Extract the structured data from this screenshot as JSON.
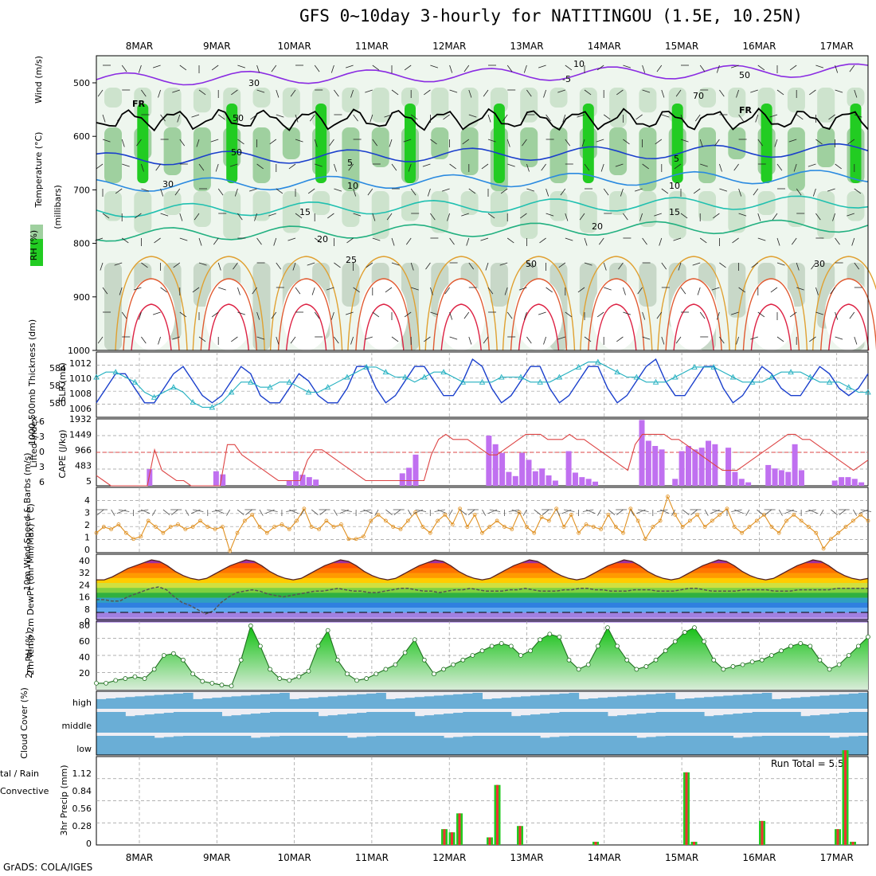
{
  "title": "GFS 0~10day 3-hourly for NATITINGOU (1.5E, 10.25N)",
  "footer": "GrADS: COLA/IGES",
  "dates": [
    "8MAR",
    "9MAR",
    "10MAR",
    "11MAR",
    "12MAR",
    "13MAR",
    "14MAR",
    "15MAR",
    "16MAR",
    "17MAR"
  ],
  "colors": {
    "rh_green": "#22cc22",
    "cape_bar": "#c070f0",
    "lifted": "#dd4444",
    "slp": "#1a3fcc",
    "thickness": "#22b0c0",
    "wind": "#e09020",
    "precip_total": "#22cc22",
    "precip_conv": "#ee3333",
    "cloud": "#6aaed6"
  },
  "panels": {
    "upper_air": {
      "ylabel_rh": "RH (%)",
      "ylabel_temp": "Temperature (°C)",
      "ylabel_wind": "Wind (m/s)",
      "ylabel_units": "(millibars)",
      "y_ticks": [
        "500",
        "600",
        "700",
        "800",
        "900",
        "1000"
      ],
      "freezing_label": "FR",
      "isotherm_labels": [
        "-5",
        "-5",
        "5",
        "5",
        "10",
        "10",
        "15",
        "15",
        "20",
        "20",
        "25"
      ],
      "rh_labels": [
        "10",
        "30",
        "50",
        "50",
        "70",
        "50",
        "30",
        "50",
        "30"
      ]
    },
    "thickness_slp": {
      "ylabel_thick": "1000-500mb Thickness (dm)",
      "ylabel_slp": "SLP (mb)",
      "thick_ticks": [
        "584",
        "582",
        "580"
      ],
      "slp_ticks": [
        "1012",
        "1010",
        "1008",
        "1006"
      ]
    },
    "cape_li": {
      "ylabel_li": "Lifted Index",
      "ylabel_cape": "CAPE (J/kg)",
      "li_ticks": [
        "-6",
        "-3",
        "0",
        "3",
        "6"
      ],
      "cape_ticks": [
        "1932",
        "1449",
        "966",
        "483",
        "5"
      ]
    },
    "wind10m": {
      "ylabel": "10m Wind Speed & Barbs (m/s)",
      "y_ticks": [
        "4",
        "3",
        "2",
        "1",
        "0"
      ]
    },
    "temp2m": {
      "ylabel": "2m Temp 2m DewPt (6hr Min/Max) (°C)",
      "y_ticks": [
        "40",
        "32",
        "24",
        "16",
        "8",
        "0"
      ]
    },
    "rh2m": {
      "ylabel": "2m RH (%)",
      "y_ticks": [
        "80",
        "60",
        "40",
        "20"
      ]
    },
    "cloud": {
      "ylabel": "Cloud Cover (%)",
      "levels": [
        "high",
        "middle",
        "low"
      ]
    },
    "precip": {
      "ylabel": "3hr Precip (mm)",
      "ylabel_left": "tal / Rain Convective",
      "y_ticks": [
        "1.12",
        "0.84",
        "0.56",
        "0.28",
        "0"
      ],
      "run_total": "Run Total = 5.5"
    }
  },
  "chart_data": [
    {
      "type": "line",
      "name_slp": "SLP",
      "slp": [
        1007,
        1009,
        1011,
        1011,
        1009,
        1007,
        1007,
        1009,
        1011,
        1012,
        1010,
        1008,
        1007,
        1008,
        1010,
        1012,
        1011,
        1008,
        1007,
        1007,
        1009,
        1011,
        1010,
        1008,
        1007,
        1007,
        1009,
        1012,
        1012,
        1009,
        1007,
        1008,
        1010,
        1012,
        1012,
        1010,
        1008,
        1008,
        1010,
        1013,
        1012,
        1009,
        1007,
        1008,
        1010,
        1012,
        1012,
        1009,
        1007,
        1008,
        1010,
        1012,
        1012,
        1009,
        1007,
        1008,
        1010,
        1012,
        1013,
        1010,
        1008,
        1008,
        1010,
        1012,
        1012,
        1009,
        1007,
        1008,
        1010,
        1012,
        1011,
        1009,
        1008,
        1008,
        1010,
        1012,
        1011,
        1009,
        1008,
        1009,
        1011
      ],
      "thickness": [
        582.5,
        583,
        583,
        582.5,
        582,
        581,
        580.5,
        581,
        581.5,
        581,
        580,
        579.5,
        579.5,
        580,
        581,
        582,
        582,
        581.5,
        581.5,
        582,
        582,
        581.5,
        581,
        581,
        581.5,
        582,
        582.5,
        583,
        583.5,
        583.5,
        583,
        582.5,
        582.5,
        582,
        582.5,
        583,
        583,
        582.5,
        582,
        582,
        582,
        582,
        582.5,
        582.5,
        582.5,
        582,
        582,
        582,
        582.5,
        583,
        583.5,
        584,
        584,
        583.5,
        583,
        582.5,
        582.5,
        582,
        582,
        582,
        582.5,
        583,
        583.5,
        583.5,
        583.5,
        583,
        582.5,
        582,
        582,
        582,
        582.5,
        583,
        583,
        583,
        582.5,
        582,
        582,
        582,
        581.5,
        581,
        581
      ]
    },
    {
      "type": "bar",
      "cape": [
        5,
        5,
        5,
        5,
        5,
        5,
        5,
        5,
        480,
        5,
        5,
        5,
        5,
        5,
        5,
        5,
        5,
        5,
        420,
        330,
        5,
        5,
        5,
        5,
        5,
        5,
        5,
        5,
        5,
        150,
        420,
        320,
        250,
        180,
        5,
        5,
        5,
        5,
        5,
        5,
        5,
        5,
        5,
        5,
        5,
        5,
        360,
        520,
        900,
        5,
        5,
        5,
        5,
        5,
        5,
        5,
        5,
        5,
        5,
        1449,
        1200,
        950,
        400,
        280,
        950,
        750,
        420,
        500,
        300,
        150,
        5,
        1000,
        380,
        250,
        200,
        120,
        5,
        5,
        5,
        5,
        5,
        5,
        1900,
        1300,
        1150,
        1050,
        5,
        200,
        1000,
        1150,
        1050,
        1100,
        1300,
        1200,
        5,
        1100,
        400,
        200,
        100,
        5,
        5,
        600,
        500,
        450,
        400,
        1200,
        450,
        5,
        5,
        5,
        5,
        150,
        250,
        250,
        200,
        100,
        5
      ],
      "lifted_index": [
        4,
        5,
        6,
        6,
        6,
        6,
        6,
        6,
        -1,
        3,
        4,
        5,
        5,
        6,
        6,
        6,
        6,
        6,
        -2,
        -2,
        0,
        1,
        2,
        3,
        4,
        5,
        5,
        5,
        5,
        1,
        -1,
        -1,
        0,
        1,
        2,
        3,
        4,
        5,
        5,
        5,
        5,
        5,
        5,
        5,
        5,
        5,
        0,
        -3,
        -4,
        -3,
        -3,
        -3,
        -2,
        -1,
        0,
        0,
        -1,
        -2,
        -3,
        -4,
        -4,
        -4,
        -3,
        -3,
        -3,
        -4,
        -3,
        -3,
        -2,
        -1,
        0,
        1,
        2,
        3,
        -2,
        -4,
        -4,
        -4,
        -4,
        -3,
        -3,
        -2,
        -1,
        0,
        1,
        2,
        3,
        3,
        3,
        2,
        1,
        0,
        -1,
        -2,
        -3,
        -4,
        -4,
        -3,
        -3,
        -2,
        -1,
        0,
        1,
        2,
        3,
        2,
        1
      ]
    },
    {
      "type": "line",
      "wind_speed": [
        1.5,
        2,
        1.8,
        2.2,
        1.5,
        1,
        1.2,
        2.5,
        2,
        1.5,
        2,
        2.2,
        1.8,
        2,
        2.5,
        2,
        1.8,
        2,
        0,
        1.5,
        2.5,
        3,
        2,
        1.5,
        2,
        2.2,
        1.8,
        2.5,
        3.5,
        2,
        1.8,
        2.5,
        2,
        2.2,
        1,
        1,
        1.2,
        2.5,
        3,
        2.5,
        2,
        1.8,
        2.5,
        3.2,
        2,
        1.5,
        2.5,
        3,
        2.2,
        3.5,
        2,
        3,
        1.5,
        2,
        2.5,
        2,
        1.8,
        3.2,
        2,
        1.5,
        2.8,
        2.5,
        3.5,
        2,
        3,
        1.5,
        2.2,
        2,
        1.8,
        3,
        2,
        1.5,
        3.5,
        2.5,
        1,
        2,
        2.5,
        4.5,
        3,
        2,
        2.5,
        3,
        2,
        2.5,
        3,
        3.5,
        2,
        1.5,
        2,
        2.5,
        3,
        2,
        1.5,
        2.5,
        3,
        2.5,
        2,
        1.5,
        0.2,
        1,
        1.5,
        2,
        2.5,
        3,
        2.5
      ]
    },
    {
      "type": "area",
      "temp2m": [
        24,
        24,
        26,
        29,
        32,
        34,
        36,
        38,
        37,
        34,
        30,
        27,
        25,
        24,
        25,
        28,
        31,
        34,
        36,
        38,
        37,
        34,
        30,
        27,
        25,
        24,
        25,
        28,
        31,
        34,
        36,
        38,
        37,
        34,
        30,
        27,
        25,
        24,
        25,
        28,
        31,
        34,
        36,
        38,
        37,
        34,
        30,
        27,
        25,
        24,
        25,
        28,
        31,
        34,
        36,
        38,
        37,
        34,
        30,
        27,
        25,
        24,
        25,
        28,
        31,
        34,
        36,
        38,
        37,
        34,
        30,
        27,
        25,
        24,
        25,
        28,
        31,
        34,
        36,
        38,
        37,
        34,
        30,
        27,
        25,
        24,
        25,
        28,
        31,
        34,
        36,
        38,
        37,
        34,
        30,
        27,
        25,
        24,
        25
      ],
      "dewpt2m": [
        10,
        10,
        9,
        9,
        12,
        14,
        16,
        18,
        19,
        17,
        12,
        8,
        6,
        3,
        0,
        2,
        8,
        12,
        15,
        16,
        17,
        16,
        14,
        13,
        12,
        13,
        14,
        15,
        16,
        16,
        17,
        18,
        17,
        16,
        16,
        15,
        15,
        16,
        17,
        18,
        18,
        17,
        16,
        16,
        15,
        16,
        17,
        17,
        18,
        17,
        16,
        16,
        16,
        17,
        17,
        18,
        17,
        16,
        16,
        16,
        17,
        17,
        18,
        18,
        17,
        17,
        16,
        16,
        16,
        17,
        17,
        17,
        16,
        16,
        16,
        17,
        18,
        18,
        17,
        16,
        16,
        16,
        16,
        17,
        17,
        17,
        17,
        16,
        16,
        16,
        17,
        17,
        17,
        17,
        17,
        18,
        18,
        18,
        18,
        18
      ]
    },
    {
      "type": "area",
      "rh2m": [
        15,
        15,
        18,
        20,
        22,
        20,
        30,
        45,
        47,
        40,
        25,
        17,
        15,
        13,
        12,
        40,
        77,
        55,
        30,
        20,
        18,
        22,
        28,
        55,
        72,
        40,
        25,
        18,
        20,
        25,
        30,
        35,
        48,
        62,
        40,
        25,
        30,
        35,
        40,
        45,
        50,
        55,
        58,
        55,
        45,
        50,
        62,
        68,
        65,
        40,
        30,
        35,
        55,
        75,
        55,
        40,
        30,
        33,
        40,
        50,
        60,
        70,
        75,
        60,
        40,
        30,
        33,
        35,
        38,
        40,
        45,
        50,
        55,
        58,
        55,
        40,
        30,
        35,
        45,
        55,
        65
      ]
    },
    {
      "type": "bar",
      "precip_total": [
        0,
        0,
        0,
        0,
        0,
        0,
        0,
        0,
        0,
        0,
        0,
        0,
        0,
        0,
        0,
        0,
        0,
        0,
        0,
        0,
        0,
        0,
        0,
        0,
        0,
        0,
        0,
        0,
        0,
        0,
        0,
        0,
        0,
        0,
        0,
        0,
        0,
        0,
        0,
        0,
        0,
        0,
        0,
        0,
        0,
        0,
        0.25,
        0.2,
        0.5,
        0,
        0,
        0,
        0.12,
        0.95,
        0,
        0,
        0.3,
        0,
        0,
        0,
        0,
        0,
        0,
        0,
        0,
        0,
        0.05,
        0,
        0,
        0,
        0,
        0,
        0,
        0,
        0,
        0,
        0,
        0,
        1.15,
        0.05,
        0,
        0,
        0,
        0,
        0,
        0,
        0,
        0,
        0.38,
        0,
        0,
        0,
        0,
        0,
        0,
        0,
        0,
        0,
        0.25,
        1.5,
        0.05,
        0,
        0
      ],
      "precip_conv": [
        0,
        0,
        0,
        0,
        0,
        0,
        0,
        0,
        0,
        0,
        0,
        0,
        0,
        0,
        0,
        0,
        0,
        0,
        0,
        0,
        0,
        0,
        0,
        0,
        0,
        0,
        0,
        0,
        0,
        0,
        0,
        0,
        0,
        0,
        0,
        0,
        0,
        0,
        0,
        0,
        0,
        0,
        0,
        0,
        0,
        0,
        0.25,
        0.2,
        0.5,
        0,
        0,
        0,
        0.12,
        0.95,
        0,
        0,
        0.3,
        0,
        0,
        0,
        0,
        0,
        0,
        0,
        0,
        0,
        0.05,
        0,
        0,
        0,
        0,
        0,
        0,
        0,
        0,
        0,
        0,
        0,
        1.15,
        0.05,
        0,
        0,
        0,
        0,
        0,
        0,
        0,
        0,
        0.38,
        0,
        0,
        0,
        0,
        0,
        0,
        0,
        0,
        0,
        0.25,
        1.5,
        0.05,
        0,
        0
      ]
    }
  ]
}
